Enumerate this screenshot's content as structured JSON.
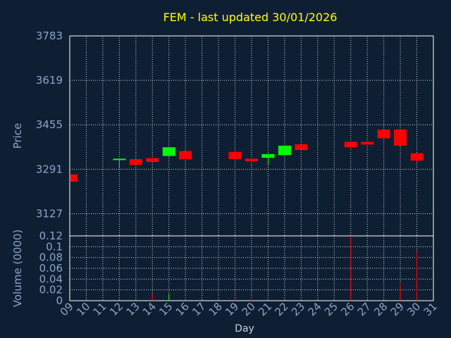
{
  "chart_data": {
    "type": "candlestick",
    "title": "FEM - last updated 30/01/2026",
    "xlabel": "Day",
    "price_panel": {
      "ylabel": "Price",
      "ylim": [
        3045,
        3783
      ],
      "yticks": [
        3127,
        3291,
        3455,
        3619,
        3783
      ]
    },
    "volume_panel": {
      "ylabel": "Volume (0000)",
      "ylim": [
        0,
        0.12
      ],
      "yticks": [
        0,
        0.02,
        0.04,
        0.06,
        0.08,
        0.1,
        0.12
      ]
    },
    "x_ticks": [
      "09",
      "10",
      "11",
      "12",
      "13",
      "14",
      "15",
      "16",
      "17",
      "18",
      "19",
      "20",
      "21",
      "22",
      "23",
      "24",
      "25",
      "26",
      "27",
      "28",
      "29",
      "30",
      "31"
    ],
    "candles": [
      {
        "day": 9,
        "open": 3272,
        "close": 3245,
        "high": 3272,
        "low": 3245
      },
      {
        "day": 12,
        "open": 3325,
        "close": 3330,
        "high": 3330,
        "low": 3295
      },
      {
        "day": 13,
        "open": 3328,
        "close": 3307,
        "high": 3328,
        "low": 3307
      },
      {
        "day": 14,
        "open": 3332,
        "close": 3318,
        "high": 3332,
        "low": 3318
      },
      {
        "day": 15,
        "open": 3340,
        "close": 3372,
        "high": 3372,
        "low": 3340
      },
      {
        "day": 16,
        "open": 3358,
        "close": 3327,
        "high": 3358,
        "low": 3327
      },
      {
        "day": 19,
        "open": 3355,
        "close": 3328,
        "high": 3355,
        "low": 3318
      },
      {
        "day": 20,
        "open": 3330,
        "close": 3320,
        "high": 3330,
        "low": 3308
      },
      {
        "day": 21,
        "open": 3333,
        "close": 3347,
        "high": 3347,
        "low": 3308
      },
      {
        "day": 22,
        "open": 3343,
        "close": 3378,
        "high": 3378,
        "low": 3343
      },
      {
        "day": 23,
        "open": 3383,
        "close": 3362,
        "high": 3383,
        "low": 3362
      },
      {
        "day": 26,
        "open": 3392,
        "close": 3372,
        "high": 3392,
        "low": 3358
      },
      {
        "day": 27,
        "open": 3392,
        "close": 3382,
        "high": 3392,
        "low": 3382
      },
      {
        "day": 28,
        "open": 3437,
        "close": 3405,
        "high": 3437,
        "low": 3405
      },
      {
        "day": 29,
        "open": 3438,
        "close": 3378,
        "high": 3438,
        "low": 3378
      },
      {
        "day": 30,
        "open": 3350,
        "close": 3323,
        "high": 3350,
        "low": 3315
      }
    ],
    "volume": [
      {
        "day": 14,
        "value": 0.012
      },
      {
        "day": 15,
        "value": 0.012
      },
      {
        "day": 19,
        "value": 0.005
      },
      {
        "day": 20,
        "value": 0.008
      },
      {
        "day": 26,
        "value": 0.12
      },
      {
        "day": 29,
        "value": 0.03
      },
      {
        "day": 30,
        "value": 0.09
      }
    ],
    "colors": {
      "background": "#0f1f33",
      "up": "#00ff00",
      "down": "#ff0000",
      "axis_text": "#8aa4c8",
      "title": "#ffff00",
      "frame": "#ffffff"
    },
    "grid": true
  }
}
